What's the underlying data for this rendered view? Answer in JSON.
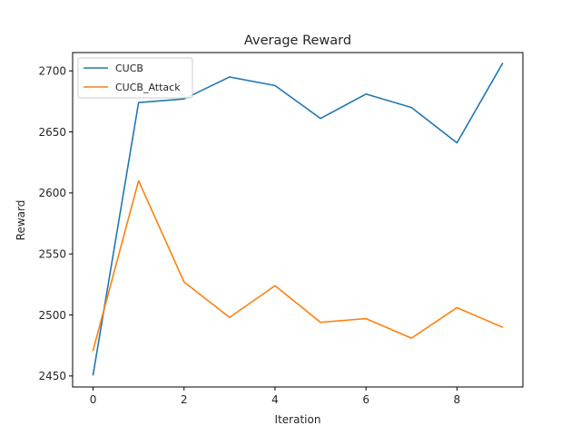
{
  "chart_data": {
    "type": "line",
    "title": "Average Reward",
    "xlabel": "Iteration",
    "ylabel": "Reward",
    "x": [
      0,
      1,
      2,
      3,
      4,
      5,
      6,
      7,
      8,
      9
    ],
    "xlim": [
      -0.45,
      9.45
    ],
    "ylim": [
      2441,
      2715
    ],
    "xticks": [
      0,
      2,
      4,
      6,
      8
    ],
    "yticks": [
      2450,
      2500,
      2550,
      2600,
      2650,
      2700
    ],
    "grid": false,
    "legend_position": "top-left",
    "series": [
      {
        "name": "CUCB",
        "color": "#1f77b4",
        "values": [
          2451,
          2674,
          2677,
          2695,
          2688,
          2661,
          2681,
          2670,
          2641,
          2706
        ]
      },
      {
        "name": "CUCB_Attack",
        "color": "#ff7f0e",
        "values": [
          2471,
          2610,
          2527,
          2498,
          2524,
          2494,
          2497,
          2481,
          2506,
          2490
        ]
      }
    ]
  }
}
